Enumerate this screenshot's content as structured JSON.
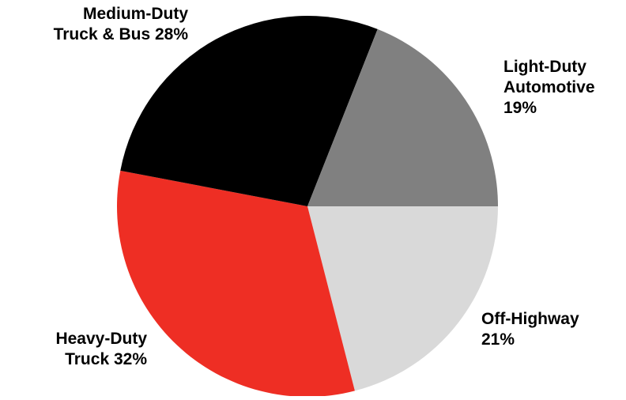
{
  "chart_data": {
    "type": "pie",
    "title": "",
    "start_angle_deg": 0,
    "direction": "clockwise",
    "slices": [
      {
        "name": "Off-Highway",
        "value": 21,
        "color": "#d9d9d9",
        "label_lines": [
          "Off-Highway",
          "21%"
        ]
      },
      {
        "name": "Heavy-Duty Truck",
        "value": 32,
        "color": "#ee2e24",
        "label_lines": [
          "Heavy-Duty",
          "Truck 32%"
        ]
      },
      {
        "name": "Medium-Duty Truck & Bus",
        "value": 28,
        "color": "#000000",
        "label_lines": [
          "Medium-Duty",
          "Truck & Bus 28%"
        ]
      },
      {
        "name": "Light-Duty Automotive",
        "value": 19,
        "color": "#808080",
        "label_lines": [
          "Light-Duty",
          "Automotive",
          "19%"
        ]
      }
    ]
  }
}
